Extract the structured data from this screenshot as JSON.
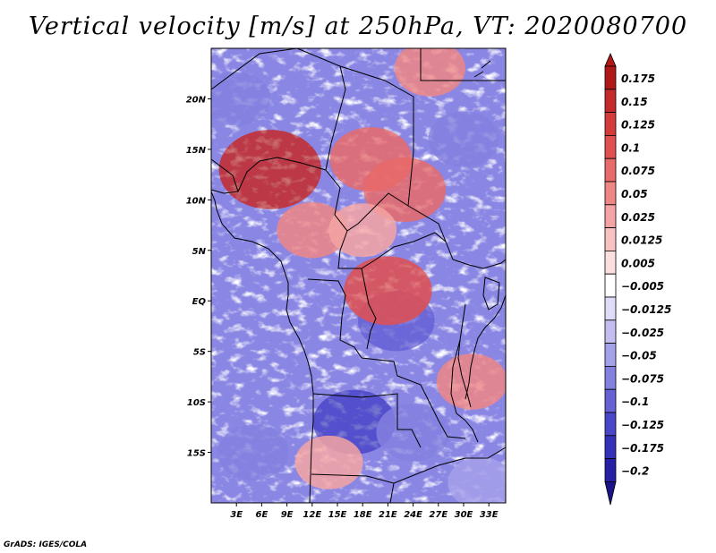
{
  "title": "Vertical velocity [m/s] at 250hPa, VT: 2020080700",
  "credit": "GrADS: IGES/COLA",
  "map": {
    "lon_range": [
      0,
      35
    ],
    "lat_range": [
      -20,
      25
    ],
    "lat_ticks": [
      {
        "value": 20,
        "label": "20N"
      },
      {
        "value": 15,
        "label": "15N"
      },
      {
        "value": 10,
        "label": "10N"
      },
      {
        "value": 5,
        "label": "5N"
      },
      {
        "value": 0,
        "label": "EQ"
      },
      {
        "value": -5,
        "label": "5S"
      },
      {
        "value": -10,
        "label": "10S"
      },
      {
        "value": -15,
        "label": "15S"
      }
    ],
    "lon_ticks": [
      {
        "value": 3,
        "label": "3E"
      },
      {
        "value": 6,
        "label": "6E"
      },
      {
        "value": 9,
        "label": "9E"
      },
      {
        "value": 12,
        "label": "12E"
      },
      {
        "value": 15,
        "label": "15E"
      },
      {
        "value": 18,
        "label": "18E"
      },
      {
        "value": 21,
        "label": "21E"
      },
      {
        "value": 24,
        "label": "24E"
      },
      {
        "value": 27,
        "label": "27E"
      },
      {
        "value": 30,
        "label": "30E"
      },
      {
        "value": 33,
        "label": "33E"
      }
    ],
    "field_regions": [
      {
        "lon": 7,
        "lat": 13,
        "w": 0.17
      },
      {
        "lon": 19,
        "lat": 14,
        "w": 0.1
      },
      {
        "lon": 23,
        "lat": 11,
        "w": 0.1
      },
      {
        "lon": 12,
        "lat": 7,
        "w": 0.06
      },
      {
        "lon": 18,
        "lat": 7,
        "w": 0.05
      },
      {
        "lon": 30,
        "lat": 16,
        "w": -0.06
      },
      {
        "lon": 22,
        "lat": -2,
        "w": -0.08
      },
      {
        "lon": 17,
        "lat": -12,
        "w": -0.1
      },
      {
        "lon": 24,
        "lat": -13,
        "w": -0.07
      },
      {
        "lon": 5,
        "lat": -15,
        "w": -0.06
      },
      {
        "lon": 31,
        "lat": -8,
        "w": 0.06
      },
      {
        "lon": 14,
        "lat": -16,
        "w": 0.05
      },
      {
        "lon": 26,
        "lat": 23,
        "w": 0.06
      },
      {
        "lon": 3,
        "lat": 20,
        "w": -0.05
      },
      {
        "lon": 21,
        "lat": 1,
        "w": 0.12
      },
      {
        "lon": 32,
        "lat": -18,
        "w": -0.04
      }
    ]
  },
  "colorbar": {
    "levels": [
      "0.175",
      "0.15",
      "0.125",
      "0.1",
      "0.075",
      "0.05",
      "0.025",
      "0.0125",
      "0.005",
      "−0.005",
      "−0.0125",
      "−0.025",
      "−0.05",
      "−0.075",
      "−0.1",
      "−0.125",
      "−0.175",
      "−0.2"
    ],
    "colors": [
      "#b01818",
      "#c42a2a",
      "#d43c3c",
      "#e05050",
      "#e86a6a",
      "#ee8686",
      "#f4a4a4",
      "#f8c2c2",
      "#fbdede",
      "#ffffff",
      "#dedcf6",
      "#c2bef0",
      "#a4a0ea",
      "#8480e0",
      "#6662d6",
      "#4a46c8",
      "#3530b8",
      "#2620a4",
      "#1a1488"
    ]
  }
}
